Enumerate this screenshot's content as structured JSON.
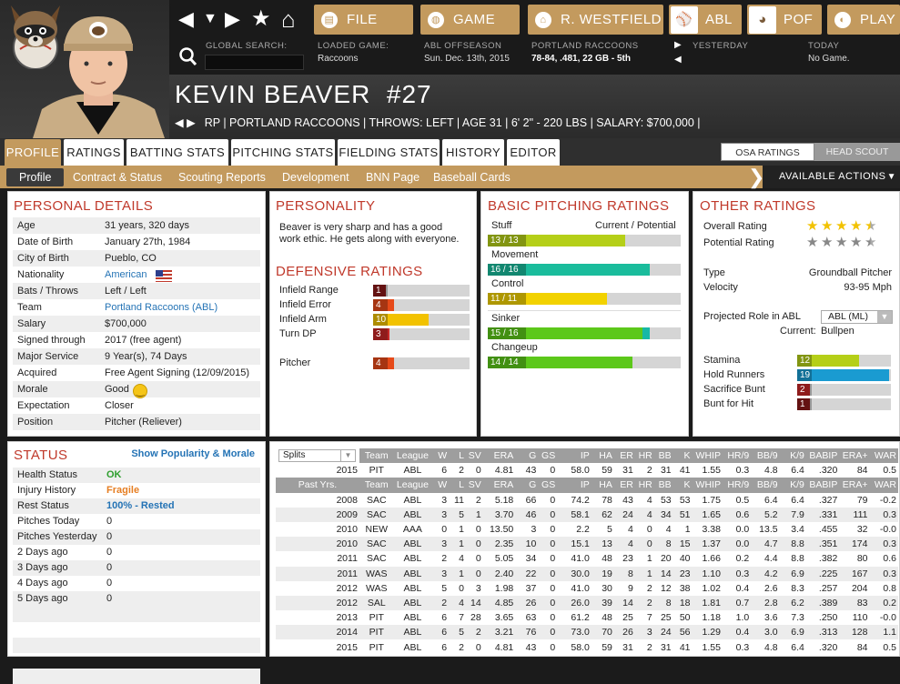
{
  "nav": {
    "back": "◀",
    "down": "▼",
    "forward": "▶",
    "star": "★",
    "home": "⌂"
  },
  "menu": {
    "file": "FILE",
    "game": "GAME",
    "manager": "R. WESTFIELD",
    "league": "ABL",
    "team": "POF",
    "play": "PLAY"
  },
  "header": {
    "global_search_label": "GLOBAL SEARCH:",
    "loaded_game_label": "LOADED GAME:",
    "loaded_game": "Raccoons",
    "season_label": "ABL OFFSEASON",
    "season_date": "Sun. Dec. 13th, 2015",
    "team_label": "PORTLAND RACCOONS",
    "team_record": "78-84, .481, 22 GB - 5th",
    "yesterday_label": "YESTERDAY",
    "today_label": "TODAY",
    "today_value": "No Game."
  },
  "player": {
    "name": "KEVIN BEAVER",
    "number": "#27",
    "subline": "RP | PORTLAND RACCOONS  |  THROWS: LEFT  |  AGE 31  |  6' 2\" - 220 LBS  |  SALARY: $700,000  |"
  },
  "tabs": [
    "PROFILE",
    "RATINGS",
    "BATTING STATS",
    "PITCHING STATS",
    "FIELDING STATS",
    "HISTORY",
    "EDITOR"
  ],
  "rating_toggle": {
    "osa": "OSA RATINGS",
    "scout": "HEAD SCOUT"
  },
  "subtabs": [
    "Profile",
    "Contract & Status",
    "Scouting Reports",
    "Development",
    "BNN Page",
    "Baseball Cards"
  ],
  "available_actions": "AVAILABLE ACTIONS",
  "personal": {
    "title": "PERSONAL DETAILS",
    "rows": [
      [
        "Age",
        "31 years, 320 days"
      ],
      [
        "Date of Birth",
        "January 27th, 1984"
      ],
      [
        "City of Birth",
        "Pueblo, CO"
      ],
      [
        "Nationality",
        "American"
      ],
      [
        "Bats / Throws",
        "Left / Left"
      ],
      [
        "Team",
        "Portland Raccoons (ABL)"
      ],
      [
        "Salary",
        "$700,000"
      ],
      [
        "Signed through",
        "2017 (free agent)"
      ],
      [
        "Major Service",
        "9 Year(s), 74 Days"
      ],
      [
        "Acquired",
        "Free Agent Signing (12/09/2015)"
      ],
      [
        "Morale",
        "Good"
      ],
      [
        "Expectation",
        "Closer"
      ],
      [
        "Position",
        "Pitcher (Reliever)"
      ]
    ]
  },
  "personality": {
    "title": "PERSONALITY",
    "text": "Beaver is very sharp and has a good work ethic. He gets along with everyone."
  },
  "defensive": {
    "title": "DEFENSIVE RATINGS",
    "rows": [
      {
        "label": "Infield Range",
        "value": "1",
        "pct": 0.05,
        "color": "#8b1a1a"
      },
      {
        "label": "Infield Error",
        "value": "4",
        "pct": 0.22,
        "color": "#e64a19"
      },
      {
        "label": "Infield Arm",
        "value": "10",
        "pct": 0.58,
        "color": "#f2c200"
      },
      {
        "label": "Turn DP",
        "value": "3",
        "pct": 0.17,
        "color": "#c62828"
      },
      {
        "label": "Pitcher",
        "value": "4",
        "pct": 0.22,
        "color": "#e64a19"
      }
    ]
  },
  "pitching": {
    "title": "BASIC PITCHING RATINGS",
    "header": "Current / Potential",
    "rows": [
      {
        "label": "Stuff",
        "value": "13 / 13",
        "pct": 0.71,
        "color": "#b5cf18"
      },
      {
        "label": "Movement",
        "value": "16 / 16",
        "pct": 0.84,
        "color": "#1abc9c"
      },
      {
        "label": "Control",
        "value": "11 / 11",
        "pct": 0.62,
        "color": "#f2d200"
      },
      {
        "label": "Sinker",
        "value": "15 / 16",
        "pct": 0.8,
        "pot": 0.84,
        "color": "#5cc81a"
      },
      {
        "label": "Changeup",
        "value": "14 / 14",
        "pct": 0.75,
        "color": "#5cc81a"
      }
    ]
  },
  "other": {
    "title": "OTHER RATINGS",
    "overall_label": "Overall Rating",
    "overall_stars": 4.5,
    "potential_label": "Potential Rating",
    "potential_stars": 4.5,
    "type_label": "Type",
    "type": "Groundball Pitcher",
    "velocity_label": "Velocity",
    "velocity": "93-95 Mph",
    "role_label": "Projected Role in ABL",
    "role_select": "ABL (ML)",
    "current_label": "Current:",
    "current": "Bullpen",
    "rows": [
      {
        "label": "Stamina",
        "value": "12",
        "pct": 0.66,
        "color": "#b5cf18"
      },
      {
        "label": "Hold Runners",
        "value": "19",
        "pct": 0.98,
        "color": "#1a9bd1"
      },
      {
        "label": "Sacrifice Bunt",
        "value": "2",
        "pct": 0.12,
        "color": "#c62828"
      },
      {
        "label": "Bunt for Hit",
        "value": "1",
        "pct": 0.07,
        "color": "#8b1a1a"
      }
    ]
  },
  "status": {
    "title": "STATUS",
    "link": "Show Popularity & Morale",
    "rows": [
      [
        "Health Status",
        "OK",
        "#2e9e2e"
      ],
      [
        "Injury History",
        "Fragile",
        "#e67e22"
      ],
      [
        "Rest Status",
        "100% - Rested",
        "#2473b5"
      ],
      [
        "Pitches Today",
        "0",
        ""
      ],
      [
        "Pitches Yesterday",
        "0",
        ""
      ],
      [
        "2 Days ago",
        "0",
        ""
      ],
      [
        "3 Days ago",
        "0",
        ""
      ],
      [
        "4 Days ago",
        "0",
        ""
      ],
      [
        "5 Days ago",
        "0",
        ""
      ]
    ]
  },
  "stats": {
    "splits": "Splits",
    "header": [
      "",
      "Team",
      "League",
      "W",
      "L",
      "SV",
      "ERA",
      "G",
      "GS",
      "IP",
      "HA",
      "ER",
      "HR",
      "BB",
      "K",
      "WHIP",
      "HR/9",
      "BB/9",
      "K/9",
      "BABIP",
      "ERA+",
      "WAR"
    ],
    "current": [
      "2015",
      "PIT",
      "ABL",
      "6",
      "2",
      "0",
      "4.81",
      "43",
      "0",
      "58.0",
      "59",
      "31",
      "2",
      "31",
      "41",
      "1.55",
      "0.3",
      "4.8",
      "6.4",
      ".320",
      "84",
      "0.5"
    ],
    "past_header": [
      "Past Yrs.",
      "Team",
      "League",
      "W",
      "L",
      "SV",
      "ERA",
      "G",
      "GS",
      "IP",
      "HA",
      "ER",
      "HR",
      "BB",
      "K",
      "WHIP",
      "HR/9",
      "BB/9",
      "K/9",
      "BABIP",
      "ERA+",
      "WAR"
    ],
    "rows": [
      [
        "2008",
        "SAC",
        "ABL",
        "3",
        "11",
        "2",
        "5.18",
        "66",
        "0",
        "74.2",
        "78",
        "43",
        "4",
        "53",
        "53",
        "1.75",
        "0.5",
        "6.4",
        "6.4",
        ".327",
        "79",
        "-0.2"
      ],
      [
        "2009",
        "SAC",
        "ABL",
        "3",
        "5",
        "1",
        "3.70",
        "46",
        "0",
        "58.1",
        "62",
        "24",
        "4",
        "34",
        "51",
        "1.65",
        "0.6",
        "5.2",
        "7.9",
        ".331",
        "111",
        "0.3"
      ],
      [
        "2010",
        "NEW",
        "AAA",
        "0",
        "1",
        "0",
        "13.50",
        "3",
        "0",
        "2.2",
        "5",
        "4",
        "0",
        "4",
        "1",
        "3.38",
        "0.0",
        "13.5",
        "3.4",
        ".455",
        "32",
        "-0.0"
      ],
      [
        "2010",
        "SAC",
        "ABL",
        "3",
        "1",
        "0",
        "2.35",
        "10",
        "0",
        "15.1",
        "13",
        "4",
        "0",
        "8",
        "15",
        "1.37",
        "0.0",
        "4.7",
        "8.8",
        ".351",
        "174",
        "0.3"
      ],
      [
        "2011",
        "SAC",
        "ABL",
        "2",
        "4",
        "0",
        "5.05",
        "34",
        "0",
        "41.0",
        "48",
        "23",
        "1",
        "20",
        "40",
        "1.66",
        "0.2",
        "4.4",
        "8.8",
        ".382",
        "80",
        "0.6"
      ],
      [
        "2011",
        "WAS",
        "ABL",
        "3",
        "1",
        "0",
        "2.40",
        "22",
        "0",
        "30.0",
        "19",
        "8",
        "1",
        "14",
        "23",
        "1.10",
        "0.3",
        "4.2",
        "6.9",
        ".225",
        "167",
        "0.3"
      ],
      [
        "2012",
        "WAS",
        "ABL",
        "5",
        "0",
        "3",
        "1.98",
        "37",
        "0",
        "41.0",
        "30",
        "9",
        "2",
        "12",
        "38",
        "1.02",
        "0.4",
        "2.6",
        "8.3",
        ".257",
        "204",
        "0.8"
      ],
      [
        "2012",
        "SAL",
        "ABL",
        "2",
        "4",
        "14",
        "4.85",
        "26",
        "0",
        "26.0",
        "39",
        "14",
        "2",
        "8",
        "18",
        "1.81",
        "0.7",
        "2.8",
        "6.2",
        ".389",
        "83",
        "0.2"
      ],
      [
        "2013",
        "PIT",
        "ABL",
        "6",
        "7",
        "28",
        "3.65",
        "63",
        "0",
        "61.2",
        "48",
        "25",
        "7",
        "25",
        "50",
        "1.18",
        "1.0",
        "3.6",
        "7.3",
        ".250",
        "110",
        "-0.0"
      ],
      [
        "2014",
        "PIT",
        "ABL",
        "6",
        "5",
        "2",
        "3.21",
        "76",
        "0",
        "73.0",
        "70",
        "26",
        "3",
        "24",
        "56",
        "1.29",
        "0.4",
        "3.0",
        "6.9",
        ".313",
        "128",
        "1.1"
      ],
      [
        "2015",
        "PIT",
        "ABL",
        "6",
        "2",
        "0",
        "4.81",
        "43",
        "0",
        "58.0",
        "59",
        "31",
        "2",
        "31",
        "41",
        "1.55",
        "0.3",
        "4.8",
        "6.4",
        ".320",
        "84",
        "0.5"
      ]
    ]
  }
}
